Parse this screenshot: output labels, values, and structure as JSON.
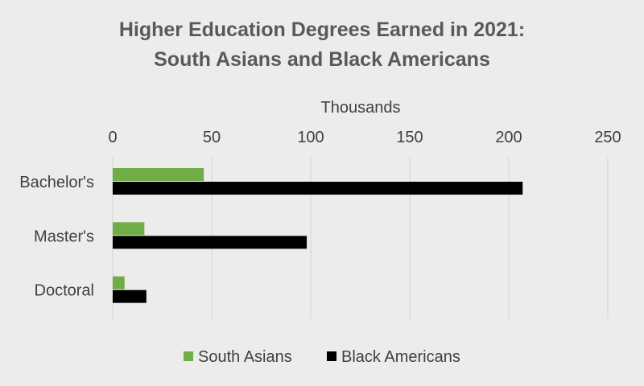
{
  "chart_data": {
    "type": "bar",
    "orientation": "horizontal",
    "title_lines": [
      "Higher Education Degrees Earned in 2021:",
      "South Asians and Black Americans"
    ],
    "xlabel": "Thousands",
    "ylabel": "",
    "xlim": [
      0,
      250
    ],
    "x_ticks": [
      "0",
      "50",
      "100",
      "150",
      "200",
      "250"
    ],
    "categories": [
      "Bachelor's",
      "Master's",
      "Doctoral"
    ],
    "series": [
      {
        "name": "South Asians",
        "values": [
          46,
          16,
          6
        ],
        "color": "#70ad47"
      },
      {
        "name": "Black Americans",
        "values": [
          207,
          98,
          17
        ],
        "color": "#000000"
      }
    ],
    "grid": true,
    "legend_position": "bottom"
  }
}
